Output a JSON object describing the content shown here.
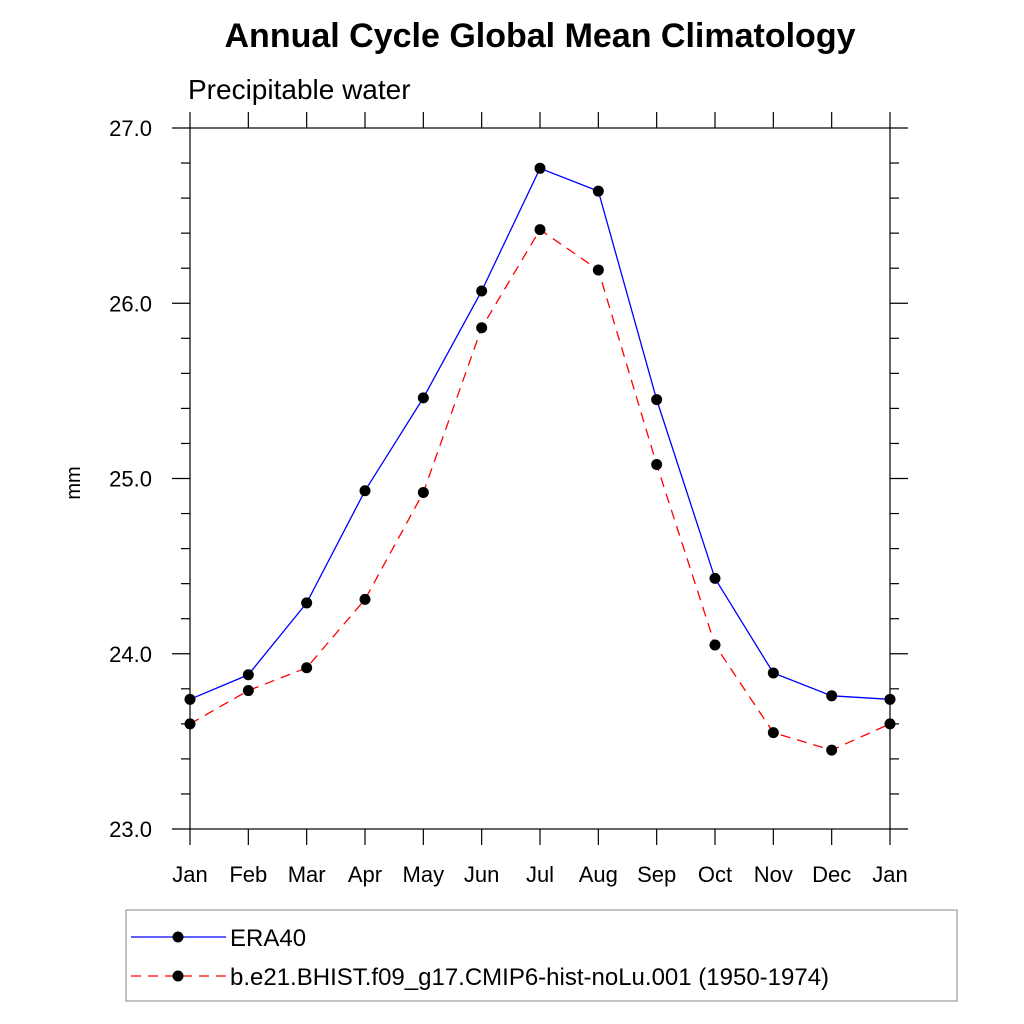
{
  "chart_data": {
    "type": "line",
    "title": "Annual Cycle Global Mean Climatology",
    "subtitle": "Precipitable water",
    "xlabel": "",
    "ylabel": "mm",
    "categories": [
      "Jan",
      "Feb",
      "Mar",
      "Apr",
      "May",
      "Jun",
      "Jul",
      "Aug",
      "Sep",
      "Oct",
      "Nov",
      "Dec",
      "Jan"
    ],
    "ylim": [
      23.0,
      27.0
    ],
    "yticks": [
      "23.0",
      "24.0",
      "25.0",
      "26.0",
      "27.0"
    ],
    "y_minor_step": 0.2,
    "grid": false,
    "legend_position": "bottom",
    "series": [
      {
        "name": "ERA40",
        "color": "#0000ff",
        "line_style": "solid",
        "marker": "filled-circle",
        "values": [
          23.74,
          23.88,
          24.29,
          24.93,
          25.46,
          26.07,
          26.77,
          26.64,
          25.45,
          24.43,
          23.89,
          23.76,
          23.74
        ]
      },
      {
        "name": "b.e21.BHIST.f09_g17.CMIP6-hist-noLu.001 (1950-1974)",
        "color": "#ff0000",
        "line_style": "dashed",
        "marker": "filled-circle",
        "values": [
          23.6,
          23.79,
          23.92,
          24.31,
          24.92,
          25.86,
          26.42,
          26.19,
          25.08,
          24.05,
          23.55,
          23.45,
          23.6
        ]
      }
    ]
  }
}
